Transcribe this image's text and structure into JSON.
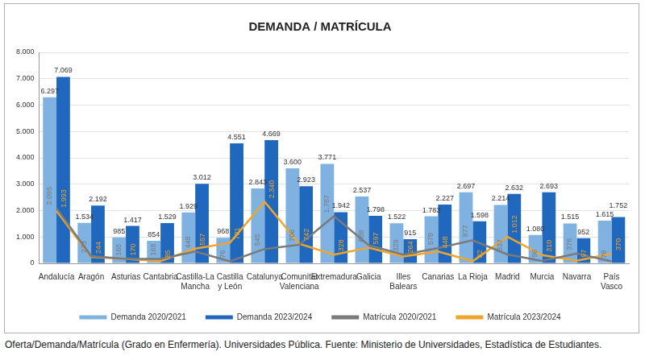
{
  "chart_data": {
    "type": "bar",
    "title": "DEMANDA / MATRÍCULA",
    "caption": "Oferta/Demanda/Matrícula (Grado en Enfermería). Universidades Pública. Fuente:  Ministerio de Universidades, Estadística de Estudiantes.",
    "categories": [
      "Andalucía",
      "Aragón",
      "Asturias",
      "Cantabria",
      "Castilla-La Mancha",
      "Castilla y León",
      "Catalunya",
      "Comunitat Valenciana",
      "Extremadura",
      "Galicia",
      "Illes Balears",
      "Canarias",
      "La Rioja",
      "Madrid",
      "Murcia",
      "Navarra",
      "País Vasco"
    ],
    "series": [
      {
        "name": "Demanda 2020/2021",
        "type": "bar",
        "color": "#7fb1e1",
        "values": [
          6297,
          1534,
          985,
          854,
          1929,
          968,
          2843,
          3600,
          3771,
          2537,
          1522,
          1783,
          2697,
          2214,
          1080,
          1515,
          1615
        ],
        "value_labels": [
          "6.297",
          "1.534",
          "985",
          "854",
          "1.929",
          "968",
          "2.843",
          "3.600",
          "3.771",
          "2.537",
          "1.522",
          "1.783",
          "2.697",
          "2.214",
          "1.080",
          "1.515",
          "1.615"
        ]
      },
      {
        "name": "Demanda 2023/2024",
        "type": "bar",
        "color": "#1f68bd",
        "values": [
          7069,
          2192,
          1417,
          1529,
          3012,
          4551,
          4669,
          2923,
          1942,
          1798,
          915,
          2227,
          1598,
          2632,
          2693,
          952,
          1752
        ],
        "value_labels": [
          "7.069",
          "2.192",
          "1.417",
          "1.529",
          "3.012",
          "4.551",
          "4.669",
          "2.923",
          "1.942",
          "1.798",
          "915",
          "2.227",
          "1.598",
          "2.632",
          "2.693",
          "952",
          "1.752"
        ]
      },
      {
        "name": "Matrícula 2020/2021",
        "type": "line",
        "color": "#7a7a7a",
        "marker": "none",
        "line_style": "solid",
        "values": [
          2095,
          273,
          165,
          168,
          448,
          76,
          545,
          706,
          1787,
          688,
          329,
          578,
          877,
          337,
          96,
          376,
          78
        ],
        "value_labels": [
          "2.095",
          "273",
          "165",
          "168",
          "448",
          "76",
          "545",
          "706",
          "1.787",
          "688",
          "329",
          "578",
          "877",
          "337",
          "96",
          "376",
          "78"
        ]
      },
      {
        "name": "Matrícula 2023/2024",
        "type": "line",
        "color": "#efa52d",
        "marker": "none",
        "line_style": "solid",
        "values": [
          1993,
          244,
          170,
          85,
          557,
          781,
          2340,
          742,
          328,
          597,
          264,
          448,
          82,
          1012,
          310,
          97,
          370
        ],
        "value_labels": [
          "1.993",
          "244",
          "170",
          "85",
          "557",
          "781",
          "2.340",
          "742",
          "328",
          "597",
          "264",
          "448",
          "82",
          "1.012",
          "310",
          "97",
          "370"
        ]
      }
    ],
    "ylim": [
      0,
      8000
    ],
    "yticks": [
      0,
      {
        "value": 1000,
        "label": "1.000"
      },
      {
        "value": 2000,
        "label": "2.000"
      },
      {
        "value": 3000,
        "label": "3.000"
      },
      {
        "value": 4000,
        "label": "4.000"
      },
      {
        "value": 5000,
        "label": "5.000"
      },
      {
        "value": 6000,
        "label": "6.000"
      },
      {
        "value": 7000,
        "label": "7.000"
      },
      {
        "value": 8000,
        "label": "8.000"
      }
    ],
    "grid": true,
    "legend": "bottom",
    "data_labels": true
  }
}
